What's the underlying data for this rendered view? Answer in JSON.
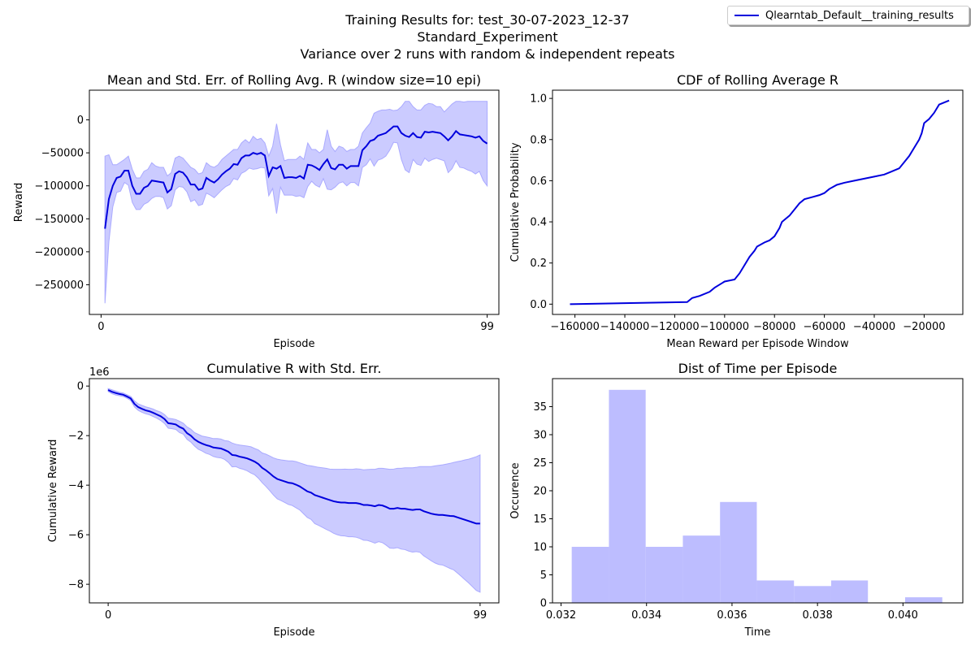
{
  "suptitle": {
    "line1": "Training Results for: test_30-07-2023_12-37",
    "line2": "Standard_Experiment",
    "line3": "Variance over 2 runs with random & independent repeats"
  },
  "legend": {
    "label": "Qlearntab_Default__training_results",
    "color": "#0000dd"
  },
  "colors": {
    "line": "#0000dd",
    "band": "#c8c8ff",
    "band_edge": "#aaaaff",
    "hist": "#bdbdff"
  },
  "chart_data": [
    {
      "id": "rolling",
      "type": "line",
      "title": "Mean and Std. Err. of Rolling Avg. R (window size=10 epi)",
      "xlabel": "Episode",
      "ylabel": "Reward",
      "xlim": [
        -3,
        102
      ],
      "ylim": [
        -295000,
        45000
      ],
      "xticks": [
        0,
        99
      ],
      "yticks": [
        0,
        -50000,
        -100000,
        -150000,
        -200000,
        -250000
      ],
      "x_start": 1,
      "mean": [
        -165000,
        -120000,
        -100000,
        -88000,
        -86000,
        -77000,
        -77000,
        -100000,
        -112000,
        -112000,
        -103000,
        -100000,
        -92000,
        -93000,
        -94000,
        -95000,
        -110000,
        -105000,
        -82000,
        -78000,
        -80000,
        -87000,
        -98000,
        -98000,
        -106000,
        -104000,
        -88000,
        -92000,
        -95000,
        -90000,
        -83000,
        -78000,
        -74000,
        -67000,
        -68000,
        -58000,
        -54000,
        -54000,
        -50000,
        -52000,
        -50000,
        -54000,
        -85000,
        -72000,
        -74000,
        -70000,
        -88000,
        -87000,
        -87000,
        -88000,
        -85000,
        -89000,
        -68000,
        -69000,
        -72000,
        -76000,
        -67000,
        -60000,
        -73000,
        -75000,
        -68000,
        -68000,
        -74000,
        -70000,
        -70000,
        -70000,
        -46000,
        -40000,
        -32000,
        -30000,
        -24000,
        -22000,
        -20000,
        -15000,
        -10000,
        -10000,
        -20000,
        -24000,
        -26000,
        -20000,
        -26000,
        -27000,
        -18000,
        -19000,
        -18000,
        -19000,
        -20000,
        -25000,
        -31000,
        -25000,
        -17000,
        -22000,
        -23000,
        -24000,
        -25000,
        -27000,
        -25000,
        -32000,
        -36000
      ],
      "upper": [
        -55000,
        -53000,
        -68000,
        -68000,
        -64000,
        -60000,
        -55000,
        -75000,
        -88000,
        -88000,
        -78000,
        -75000,
        -65000,
        -70000,
        -72000,
        -72000,
        -85000,
        -80000,
        -58000,
        -55000,
        -58000,
        -65000,
        -72000,
        -75000,
        -82000,
        -80000,
        -65000,
        -70000,
        -72000,
        -68000,
        -60000,
        -55000,
        -50000,
        -45000,
        -45000,
        -35000,
        -30000,
        -35000,
        -25000,
        -30000,
        -28000,
        -35000,
        -55000,
        -40000,
        -6000,
        -38000,
        -62000,
        -60000,
        -60000,
        -60000,
        -55000,
        -60000,
        -35000,
        -45000,
        -45000,
        -50000,
        -45000,
        -15000,
        -40000,
        -48000,
        -40000,
        -42000,
        -48000,
        -45000,
        -45000,
        -40000,
        -20000,
        -12000,
        -5000,
        10000,
        13000,
        15000,
        15000,
        16000,
        14000,
        15000,
        20000,
        28000,
        28000,
        20000,
        15000,
        15000,
        22000,
        25000,
        24000,
        20000,
        20000,
        12000,
        18000,
        24000,
        28000,
        28000,
        27000,
        28000,
        28000,
        28000,
        28000,
        28000,
        28000
      ],
      "lower": [
        -278000,
        -185000,
        -132000,
        -110000,
        -108000,
        -95000,
        -99000,
        -125000,
        -136000,
        -136000,
        -128000,
        -125000,
        -119000,
        -116000,
        -116000,
        -118000,
        -135000,
        -130000,
        -106000,
        -101000,
        -102000,
        -109000,
        -124000,
        -121000,
        -130000,
        -128000,
        -111000,
        -114000,
        -118000,
        -112000,
        -106000,
        -101000,
        -98000,
        -89000,
        -91000,
        -81000,
        -78000,
        -73000,
        -75000,
        -74000,
        -72000,
        -73000,
        -115000,
        -104000,
        -142000,
        -102000,
        -114000,
        -114000,
        -114000,
        -116000,
        -115000,
        -118000,
        -101000,
        -93000,
        -99000,
        -102000,
        -89000,
        -105000,
        -106000,
        -102000,
        -96000,
        -94000,
        -100000,
        -95000,
        -95000,
        -100000,
        -72000,
        -68000,
        -59000,
        -70000,
        -61000,
        -59000,
        -55000,
        -46000,
        -34000,
        -35000,
        -60000,
        -76000,
        -80000,
        -60000,
        -67000,
        -69000,
        -58000,
        -63000,
        -60000,
        -58000,
        -60000,
        -62000,
        -80000,
        -74000,
        -62000,
        -72000,
        -73000,
        -76000,
        -78000,
        -82000,
        -78000,
        -92000,
        -100000
      ]
    },
    {
      "id": "cdf",
      "type": "line",
      "title": "CDF of Rolling Average R",
      "xlabel": "Mean Reward per Episode Window",
      "ylabel": "Cumulative Probability",
      "xlim": [
        -169000,
        -4500
      ],
      "ylim": [
        -0.05,
        1.04
      ],
      "xticks": [
        -160000,
        -140000,
        -120000,
        -100000,
        -80000,
        -60000,
        -40000,
        -20000
      ],
      "yticks": [
        0.0,
        0.2,
        0.4,
        0.6,
        0.8,
        1.0
      ],
      "x": [
        -162000,
        -115000,
        -113000,
        -110000,
        -106000,
        -104000,
        -100000,
        -96000,
        -94000,
        -92000,
        -90000,
        -88000,
        -87000,
        -84000,
        -82000,
        -80000,
        -78000,
        -77000,
        -76000,
        -74000,
        -72000,
        -70000,
        -68000,
        -65000,
        -62000,
        -60000,
        -58000,
        -55000,
        -52000,
        -48000,
        -44000,
        -40000,
        -36000,
        -34000,
        -30000,
        -28000,
        -26000,
        -24000,
        -22000,
        -21000,
        -20000,
        -18000,
        -16000,
        -14000,
        -10000
      ],
      "y": [
        0.0,
        0.01,
        0.03,
        0.04,
        0.06,
        0.08,
        0.11,
        0.12,
        0.15,
        0.19,
        0.23,
        0.26,
        0.28,
        0.3,
        0.31,
        0.33,
        0.37,
        0.4,
        0.41,
        0.43,
        0.46,
        0.49,
        0.51,
        0.52,
        0.53,
        0.54,
        0.56,
        0.58,
        0.59,
        0.6,
        0.61,
        0.62,
        0.63,
        0.64,
        0.66,
        0.69,
        0.72,
        0.76,
        0.8,
        0.83,
        0.88,
        0.9,
        0.93,
        0.97,
        0.99
      ]
    },
    {
      "id": "cumulative",
      "type": "line",
      "title": "Cumulative R with Std. Err.",
      "xlabel": "Episode",
      "ylabel": "Cumulative Reward",
      "offset_label": "1e6",
      "xlim": [
        -5,
        104
      ],
      "ylim": [
        -8.75,
        0.3
      ],
      "xticks": [
        0,
        99
      ],
      "yticks": [
        0,
        -2,
        -4,
        -6,
        -8
      ],
      "x_start": 0,
      "mean": [
        -0.16,
        -0.23,
        -0.28,
        -0.32,
        -0.35,
        -0.42,
        -0.5,
        -0.72,
        -0.85,
        -0.92,
        -0.98,
        -1.02,
        -1.08,
        -1.15,
        -1.22,
        -1.33,
        -1.5,
        -1.52,
        -1.55,
        -1.65,
        -1.72,
        -1.9,
        -2.0,
        -2.15,
        -2.25,
        -2.32,
        -2.38,
        -2.42,
        -2.48,
        -2.5,
        -2.52,
        -2.58,
        -2.65,
        -2.78,
        -2.8,
        -2.85,
        -2.88,
        -2.92,
        -2.98,
        -3.05,
        -3.15,
        -3.3,
        -3.4,
        -3.52,
        -3.65,
        -3.75,
        -3.8,
        -3.85,
        -3.9,
        -3.92,
        -3.98,
        -4.05,
        -4.15,
        -4.25,
        -4.3,
        -4.4,
        -4.45,
        -4.5,
        -4.55,
        -4.6,
        -4.65,
        -4.68,
        -4.7,
        -4.7,
        -4.72,
        -4.72,
        -4.72,
        -4.75,
        -4.8,
        -4.8,
        -4.82,
        -4.85,
        -4.8,
        -4.82,
        -4.88,
        -4.95,
        -4.95,
        -4.92,
        -4.95,
        -4.95,
        -4.98,
        -5.0,
        -4.98,
        -4.98,
        -5.05,
        -5.1,
        -5.15,
        -5.18,
        -5.2,
        -5.2,
        -5.22,
        -5.24,
        -5.25,
        -5.3,
        -5.35,
        -5.4,
        -5.45,
        -5.5,
        -5.55,
        -5.55
      ],
      "upper": [
        -0.1,
        -0.15,
        -0.2,
        -0.25,
        -0.28,
        -0.35,
        -0.42,
        -0.6,
        -0.72,
        -0.78,
        -0.84,
        -0.88,
        -0.93,
        -1.0,
        -1.05,
        -1.15,
        -1.3,
        -1.32,
        -1.35,
        -1.42,
        -1.5,
        -1.65,
        -1.74,
        -1.88,
        -1.95,
        -2.02,
        -2.05,
        -2.08,
        -2.12,
        -2.12,
        -2.14,
        -2.2,
        -2.22,
        -2.3,
        -2.35,
        -2.38,
        -2.4,
        -2.42,
        -2.45,
        -2.52,
        -2.58,
        -2.7,
        -2.75,
        -2.82,
        -2.9,
        -2.95,
        -2.98,
        -3.0,
        -3.02,
        -3.02,
        -3.05,
        -3.1,
        -3.15,
        -3.2,
        -3.22,
        -3.25,
        -3.28,
        -3.3,
        -3.32,
        -3.35,
        -3.36,
        -3.36,
        -3.36,
        -3.35,
        -3.36,
        -3.36,
        -3.34,
        -3.35,
        -3.38,
        -3.37,
        -3.36,
        -3.36,
        -3.32,
        -3.32,
        -3.34,
        -3.36,
        -3.35,
        -3.32,
        -3.32,
        -3.3,
        -3.3,
        -3.3,
        -3.28,
        -3.25,
        -3.25,
        -3.25,
        -3.25,
        -3.22,
        -3.2,
        -3.18,
        -3.15,
        -3.12,
        -3.08,
        -3.05,
        -3.02,
        -2.98,
        -2.95,
        -2.9,
        -2.85,
        -2.78
      ],
      "lower": [
        -0.22,
        -0.31,
        -0.36,
        -0.39,
        -0.42,
        -0.49,
        -0.58,
        -0.84,
        -0.98,
        -1.06,
        -1.12,
        -1.16,
        -1.23,
        -1.3,
        -1.39,
        -1.51,
        -1.7,
        -1.72,
        -1.75,
        -1.88,
        -1.94,
        -2.15,
        -2.26,
        -2.42,
        -2.55,
        -2.62,
        -2.71,
        -2.76,
        -2.84,
        -2.88,
        -2.9,
        -2.96,
        -3.08,
        -3.26,
        -3.25,
        -3.32,
        -3.36,
        -3.42,
        -3.51,
        -3.58,
        -3.72,
        -3.9,
        -4.05,
        -4.22,
        -4.4,
        -4.55,
        -4.62,
        -4.7,
        -4.78,
        -4.82,
        -4.91,
        -5.0,
        -5.15,
        -5.3,
        -5.38,
        -5.55,
        -5.62,
        -5.7,
        -5.78,
        -5.85,
        -5.94,
        -6.0,
        -6.04,
        -6.05,
        -6.08,
        -6.08,
        -6.1,
        -6.15,
        -6.22,
        -6.23,
        -6.28,
        -6.34,
        -6.28,
        -6.32,
        -6.42,
        -6.54,
        -6.55,
        -6.52,
        -6.58,
        -6.6,
        -6.66,
        -6.7,
        -6.68,
        -6.71,
        -6.85,
        -6.95,
        -7.05,
        -7.14,
        -7.2,
        -7.22,
        -7.29,
        -7.36,
        -7.42,
        -7.55,
        -7.68,
        -7.82,
        -7.95,
        -8.1,
        -8.25,
        -8.32
      ]
    },
    {
      "id": "timehist",
      "type": "bar",
      "title": "Dist of Time per Episode",
      "xlabel": "Time",
      "ylabel": "Occurence",
      "xlim": [
        0.0318,
        0.0414
      ],
      "ylim": [
        0,
        40
      ],
      "xticks": [
        0.032,
        0.034,
        0.036,
        0.038,
        0.04
      ],
      "yticks": [
        0,
        5,
        10,
        15,
        20,
        25,
        30,
        35
      ],
      "bin_edges": [
        0.03225,
        0.03312,
        0.03398,
        0.03485,
        0.03572,
        0.03658,
        0.03745,
        0.03832,
        0.03918,
        0.04005,
        0.04092
      ],
      "counts": [
        10,
        38,
        10,
        12,
        18,
        4,
        3,
        4,
        0,
        1
      ]
    }
  ]
}
